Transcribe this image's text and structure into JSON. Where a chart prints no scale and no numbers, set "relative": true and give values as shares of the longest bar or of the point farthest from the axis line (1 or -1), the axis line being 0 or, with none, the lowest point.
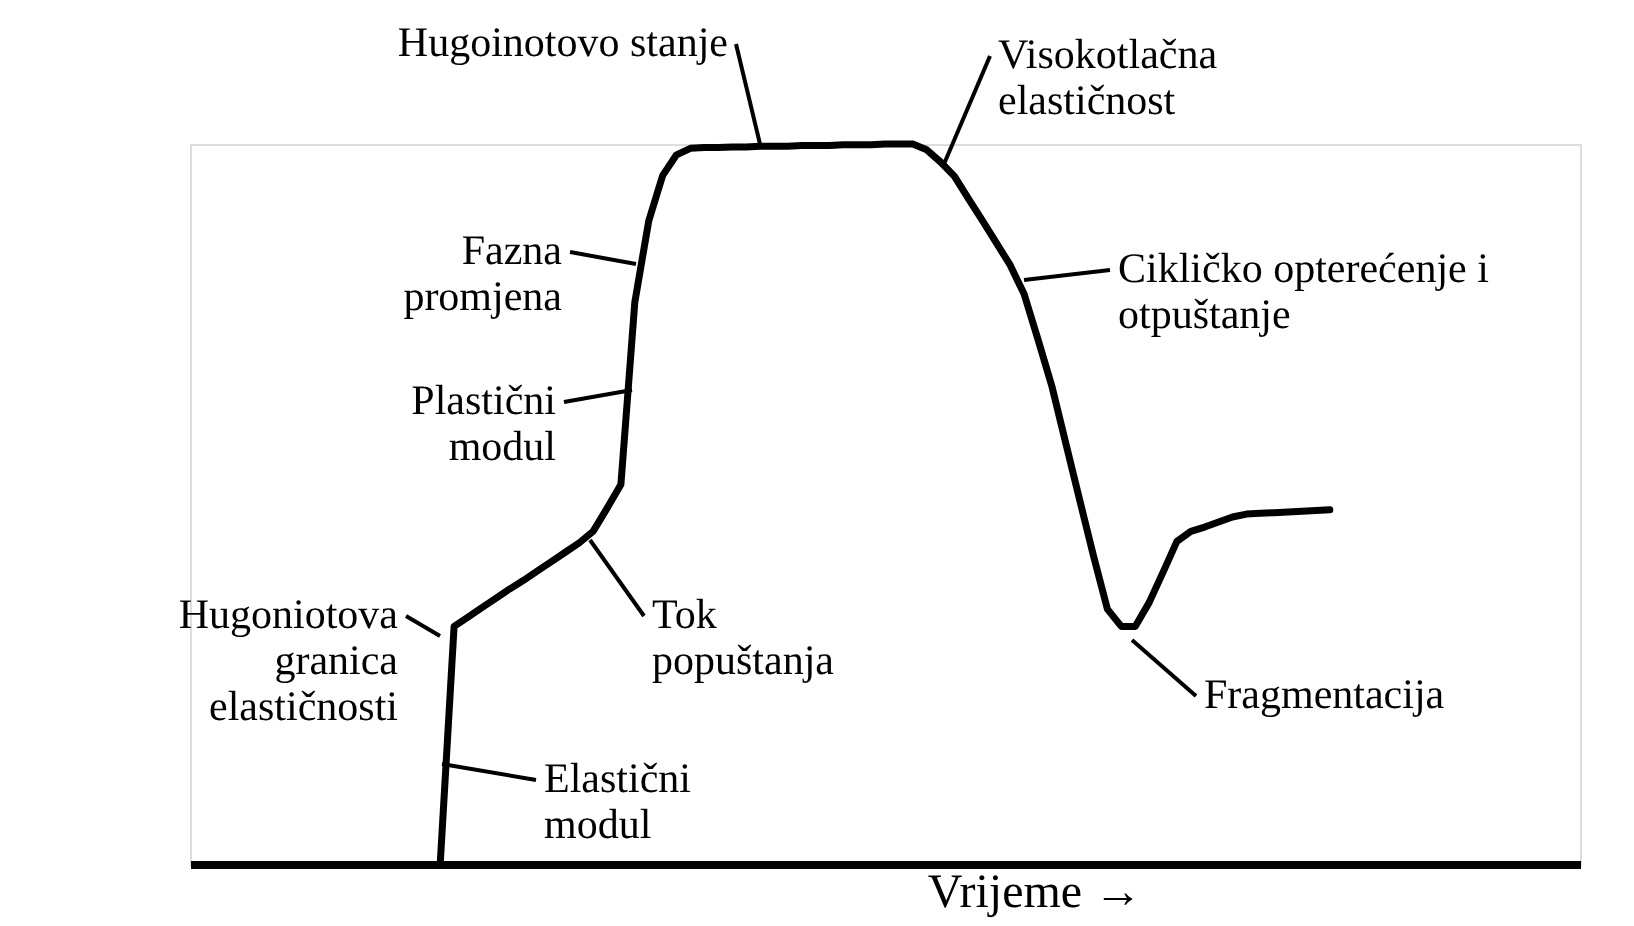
{
  "chart_data": {
    "type": "line",
    "relative": true,
    "xlabel": "Vrijeme →",
    "tick_labels": false,
    "grid": false,
    "categories": [
      null,
      null,
      null,
      null,
      null,
      null,
      null,
      null,
      null,
      null,
      null,
      null,
      null,
      null,
      null,
      null,
      null,
      null,
      null,
      null,
      null,
      null,
      null,
      null,
      null,
      null,
      null,
      null,
      null,
      null,
      null,
      null,
      null,
      null,
      null,
      null,
      null,
      null,
      null,
      null,
      null,
      null,
      null,
      null,
      null,
      null,
      null,
      null,
      null,
      null,
      null,
      null,
      null,
      null,
      null,
      null,
      null,
      null,
      null,
      null,
      null,
      null,
      null,
      null,
      null,
      null,
      null,
      null,
      null,
      null,
      null,
      null,
      null,
      null,
      null,
      null,
      null,
      null,
      null,
      null,
      null,
      null,
      null,
      null,
      null,
      null,
      null,
      null,
      null,
      null,
      null,
      null,
      null,
      null,
      null,
      null,
      null,
      null,
      null,
      null,
      null
    ],
    "series": [
      {
        "color": "#000000",
        "values": [
          null,
          null,
          null,
          null,
          null,
          null,
          null,
          null,
          null,
          null,
          null,
          null,
          null,
          null,
          null,
          null,
          null,
          null,
          0,
          0.33,
          0.343,
          0.356,
          0.369,
          0.382,
          0.394,
          0.407,
          0.42,
          0.433,
          0.446,
          0.462,
          0.494,
          0.527,
          0.78,
          0.893,
          0.956,
          0.985,
          0.994,
          0.995,
          0.995,
          0.996,
          0.996,
          0.997,
          0.997,
          0.997,
          0.998,
          0.998,
          0.998,
          0.999,
          0.999,
          0.999,
          1,
          1,
          1,
          0.992,
          0.975,
          0.955,
          0.924,
          0.894,
          0.863,
          0.832,
          0.792,
          0.729,
          0.664,
          0.585,
          0.506,
          0.428,
          0.354,
          0.33,
          0.33,
          0.363,
          0.405,
          0.448,
          0.462,
          0.468,
          0.475,
          0.482,
          0.486,
          0.487,
          0.488,
          0.489,
          0.49,
          0.491,
          0.492,
          null,
          null,
          null,
          null,
          null,
          null,
          null,
          null,
          null,
          null,
          null,
          null,
          null,
          null,
          null,
          null,
          null,
          null
        ]
      }
    ],
    "annotations": [
      "Hugoinotovo stanje",
      "Visokotlačna\nelastičnost",
      "Fazna\npromjena",
      "Plastični\nmodul",
      "Hugoniotova\ngranica\nelastičnosti",
      "Elastični\nmodul",
      "Tok\npopuštanja",
      "Cikličko  opterećenje i\notpuštanje",
      "Fragmentacija"
    ]
  }
}
